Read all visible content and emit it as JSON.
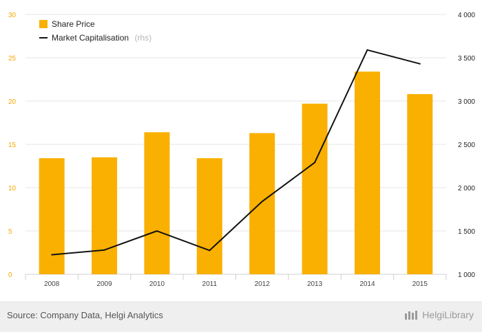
{
  "chart_data": {
    "type": "bar+line",
    "categories": [
      "2008",
      "2009",
      "2010",
      "2011",
      "2012",
      "2013",
      "2014",
      "2015"
    ],
    "series": [
      {
        "name": "Share Price",
        "type": "bar",
        "axis": "left",
        "color": "#f9b000",
        "values": [
          13.4,
          13.5,
          16.4,
          13.4,
          16.3,
          19.7,
          23.4,
          20.8
        ]
      },
      {
        "name": "Market Capitalisation",
        "name_suffix": "(rhs)",
        "type": "line",
        "axis": "right",
        "color": "#111111",
        "values": [
          1225,
          1280,
          1500,
          1275,
          1840,
          2290,
          3590,
          3430
        ]
      }
    ],
    "left_axis": {
      "min": 0,
      "max": 30,
      "ticks": [
        "0",
        "5",
        "10",
        "15",
        "20",
        "25",
        "30"
      ]
    },
    "right_axis": {
      "min": 1000,
      "max": 4000,
      "ticks": [
        "1 000",
        "1 500",
        "2 000",
        "2 500",
        "3 000",
        "3 500",
        "4 000"
      ]
    },
    "grid": true,
    "legend": "top-left"
  },
  "footer": {
    "source": "Source: Company Data, Helgi Analytics",
    "brand": "HelgiLibrary"
  }
}
